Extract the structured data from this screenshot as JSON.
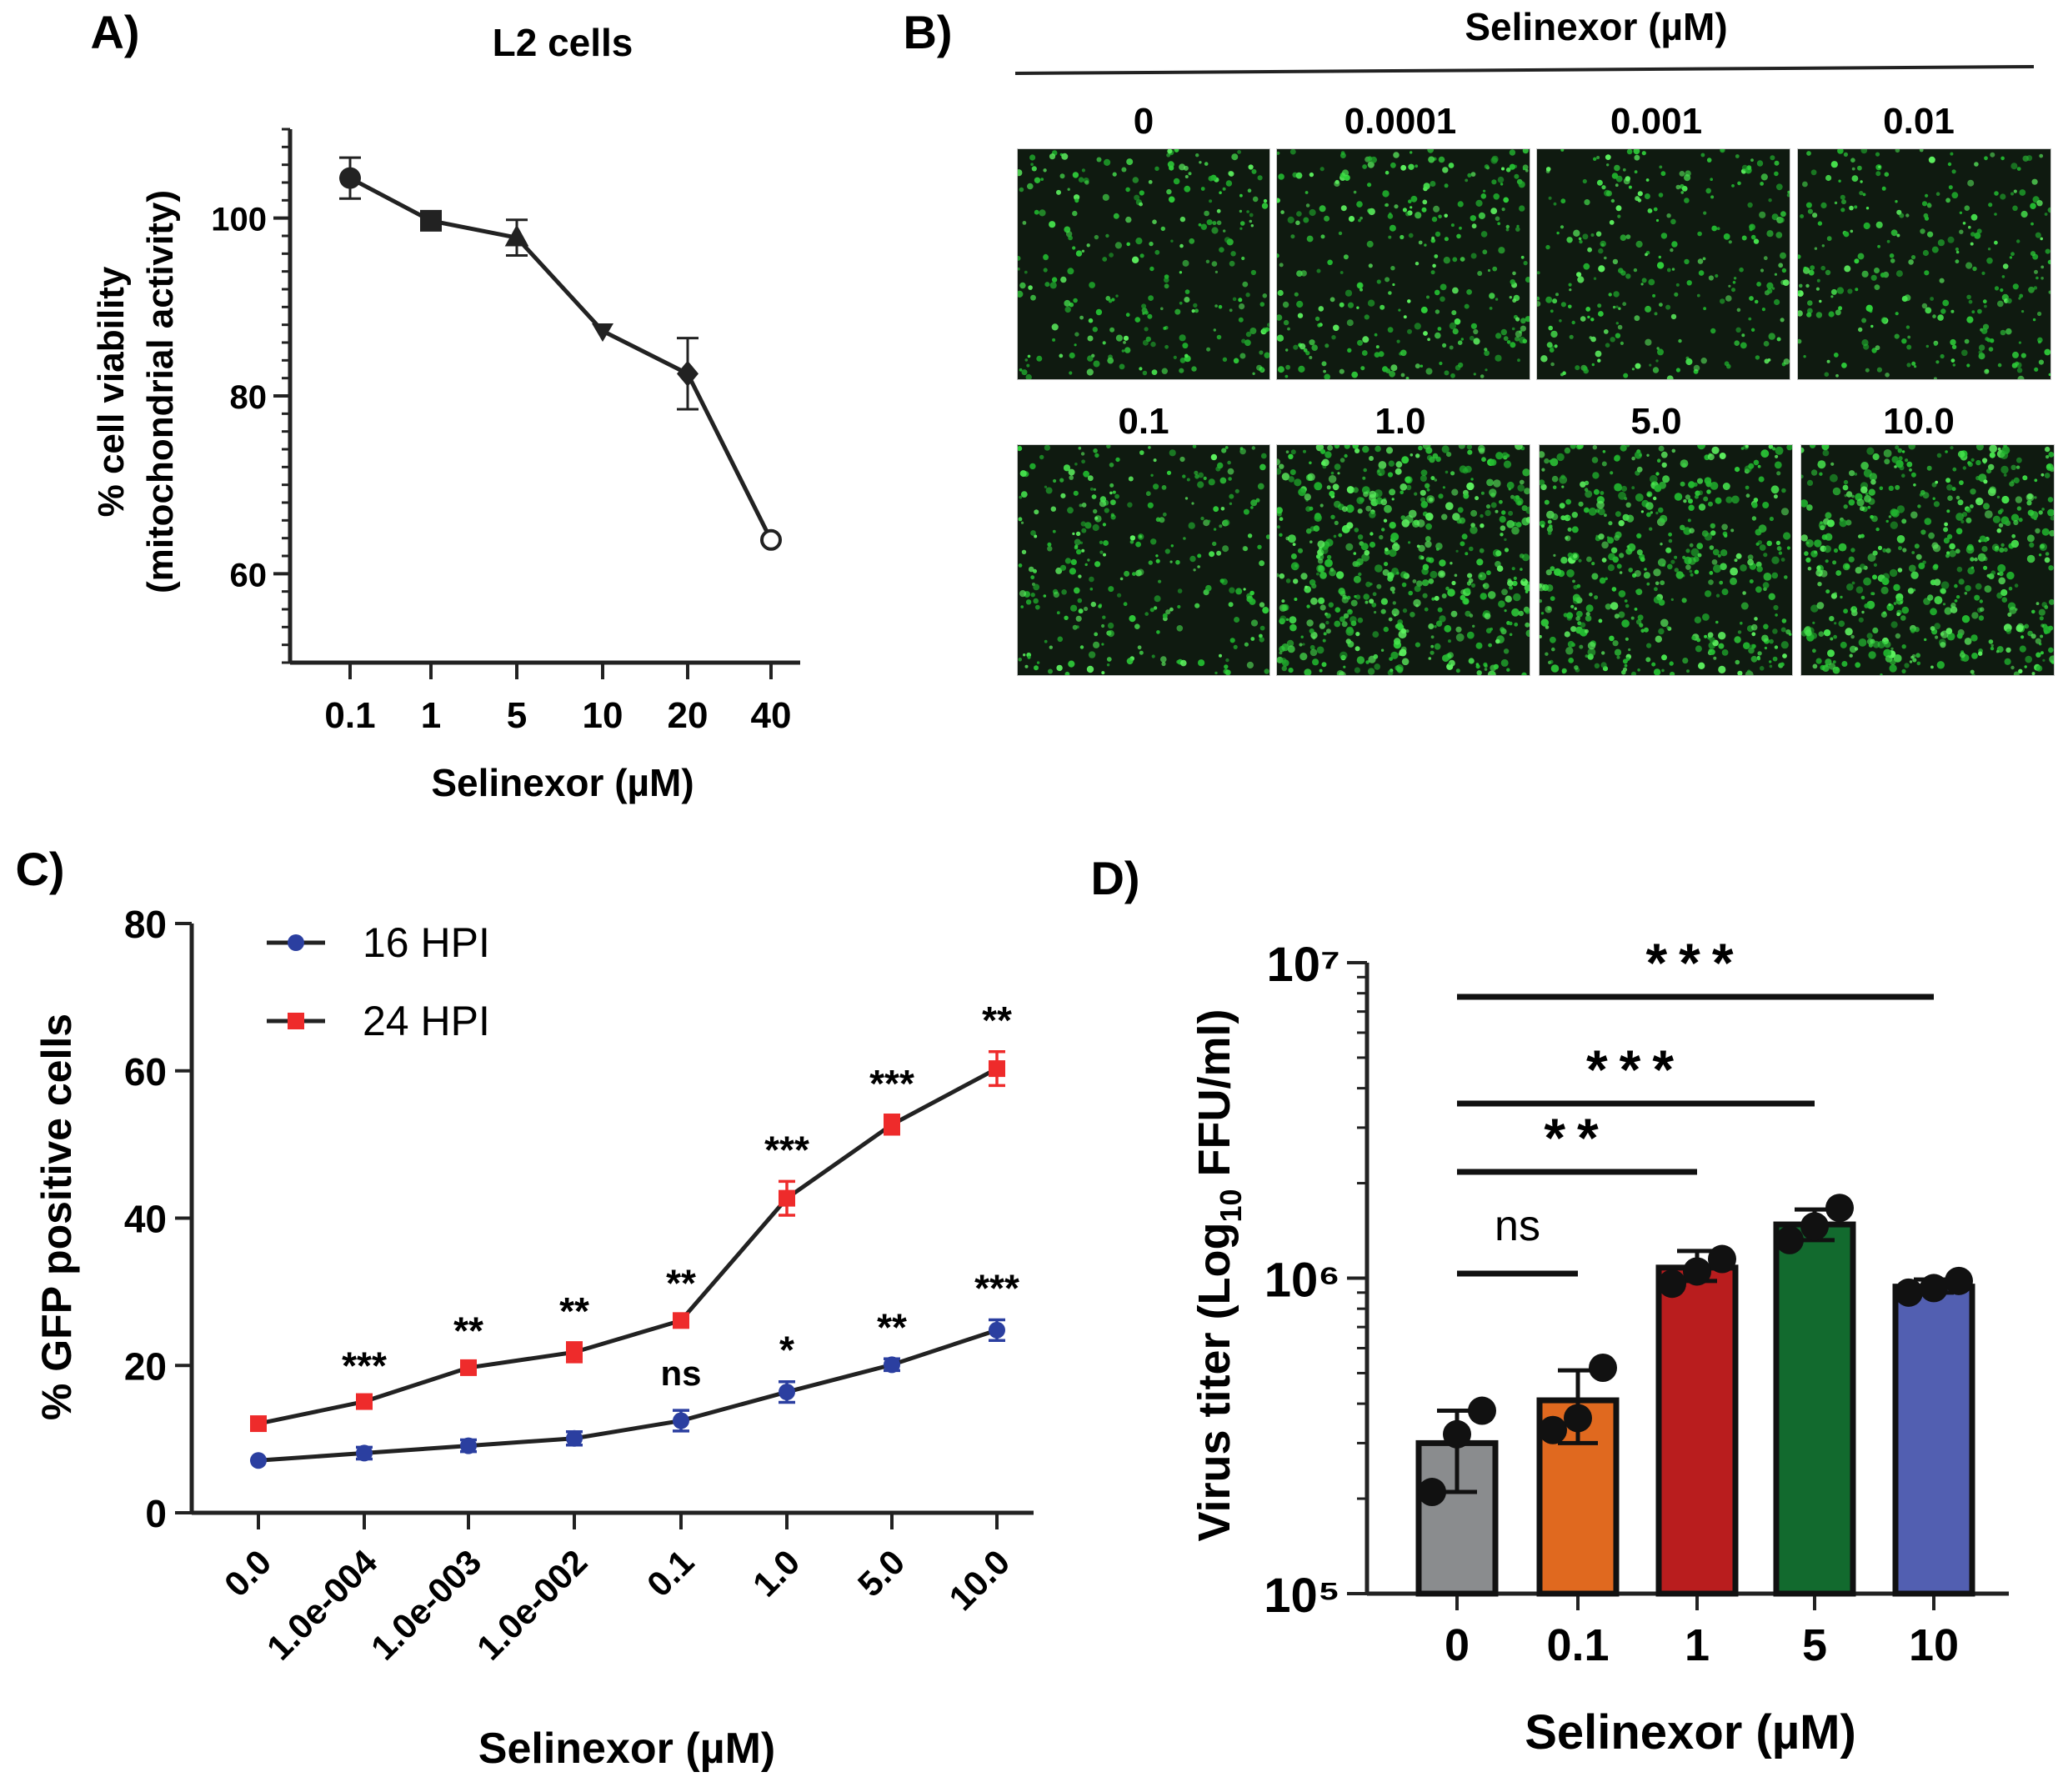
{
  "panels": {
    "A": {
      "label": "A)",
      "title": "L2 cells",
      "ylabel_line1": "% cell viability",
      "ylabel_line2": "(mitochondrial activity)",
      "xlabel": "Selinexor (µM)"
    },
    "B": {
      "label": "B)",
      "header": "Selinexor (µM)",
      "concentrations": [
        "0",
        "0.0001",
        "0.001",
        "0.01",
        "0.1",
        "1.0",
        "5.0",
        "10.0"
      ]
    },
    "C": {
      "label": "C)",
      "ylabel": "% GFP positive cells",
      "xlabel": "Selinexor (µM)"
    },
    "D": {
      "label": "D)",
      "ylabel_main": "Virus titer (Log",
      "ylabel_sub": "10",
      "ylabel_tail": " FFU/ml)",
      "xlabel": "Selinexor (µM)"
    }
  },
  "chart_data": [
    {
      "panel": "A",
      "type": "line",
      "title": "L2 cells",
      "xlabel": "Selinexor (µM)",
      "ylabel": "% cell viability (mitochondrial activity)",
      "categories": [
        "0.1",
        "1",
        "5",
        "10",
        "20",
        "40"
      ],
      "values": [
        104.5,
        99.7,
        97.8,
        87.3,
        82.5,
        63.8
      ],
      "errors": [
        2.3,
        0.5,
        2.0,
        0.6,
        4.0,
        0.4
      ],
      "markers": [
        "circle",
        "square",
        "triangle-up",
        "triangle-down",
        "diamond",
        "open-circle"
      ],
      "ylim": [
        50,
        110
      ],
      "yticks": [
        60,
        80,
        100
      ],
      "color": "#222222"
    },
    {
      "panel": "C",
      "type": "line",
      "xlabel": "Selinexor (µM)",
      "ylabel": "% GFP positive cells",
      "categories": [
        "0.0",
        "1.0e-004",
        "1.0e-003",
        "1.0e-002",
        "0.1",
        "1.0",
        "5.0",
        "10.0"
      ],
      "ylim": [
        0,
        80
      ],
      "yticks": [
        0,
        20,
        40,
        60,
        80
      ],
      "legend_position": "top-left",
      "series": [
        {
          "name": "16 HPI",
          "color": "#2B3FA0",
          "marker": "circle",
          "values": [
            7.1,
            8.1,
            9.1,
            10.1,
            12.5,
            16.4,
            20.1,
            24.8
          ],
          "errors": [
            0.4,
            0.8,
            0.8,
            0.9,
            1.4,
            1.4,
            0.8,
            1.4
          ],
          "annotations": [
            "",
            "",
            "",
            "",
            "ns",
            "*",
            "**",
            "***"
          ]
        },
        {
          "name": "24 HPI",
          "color": "#EE2B2B",
          "marker": "square",
          "values": [
            12.1,
            15.1,
            19.7,
            21.8,
            26.1,
            42.7,
            52.7,
            60.3
          ],
          "errors": [
            0.4,
            0.6,
            0.7,
            1.3,
            0.8,
            2.3,
            1.3,
            2.3
          ],
          "annotations": [
            "",
            "***",
            "**",
            "**",
            "**",
            "***",
            "***",
            "**"
          ]
        }
      ]
    },
    {
      "panel": "D",
      "type": "bar",
      "xlabel": "Selinexor (µM)",
      "ylabel": "Virus titer (Log10 FFU/ml)",
      "yscale": "log",
      "ylim": [
        100000,
        10000000
      ],
      "ytick_labels": [
        "10⁵",
        "10⁶",
        "10⁷"
      ],
      "categories": [
        "0",
        "0.1",
        "1",
        "5",
        "10"
      ],
      "values": [
        300000,
        410000,
        1080000,
        1480000,
        940000
      ],
      "error_low": [
        210000,
        300000,
        980000,
        1320000,
        900000
      ],
      "error_high": [
        380000,
        510000,
        1220000,
        1650000,
        990000
      ],
      "points": [
        [
          210000,
          320000,
          380000
        ],
        [
          330000,
          360000,
          520000
        ],
        [
          960000,
          1050000,
          1150000
        ],
        [
          1320000,
          1460000,
          1670000
        ],
        [
          900000,
          930000,
          980000
        ]
      ],
      "colors": [
        "#8A8C8E",
        "#E0691F",
        "#B91D1E",
        "#126A2E",
        "#525FB1"
      ],
      "comparisons": [
        {
          "from": "0",
          "to": "0.1",
          "label": "ns"
        },
        {
          "from": "0",
          "to": "1",
          "label": "**"
        },
        {
          "from": "0",
          "to": "5",
          "label": "***"
        },
        {
          "from": "0",
          "to": "10",
          "label": "***"
        }
      ]
    }
  ]
}
